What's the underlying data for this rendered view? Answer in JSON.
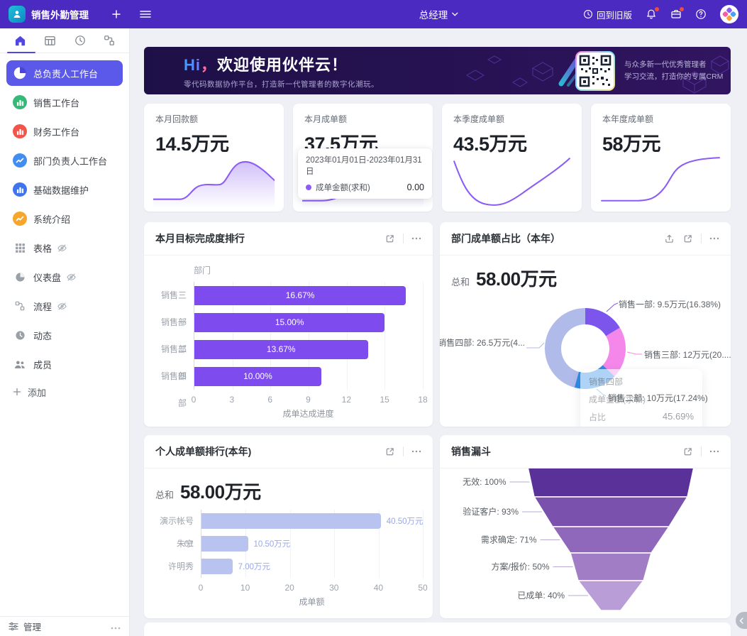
{
  "theme": {
    "topbar_bg": "#4b2ac1",
    "sidebar_active_bg": "#5b59ea",
    "accent_purple": "#7d4bee",
    "spark_color": "#8b5cf6",
    "light_bar": "#b8c3f0"
  },
  "topbar": {
    "app_title": "销售外勤管理",
    "role": "总经理",
    "back_to_old": "回到旧版"
  },
  "sidebar": {
    "tabs": [
      {
        "name": "home",
        "active": true
      },
      {
        "name": "table"
      },
      {
        "name": "clock"
      },
      {
        "name": "flow"
      }
    ],
    "items": [
      {
        "label": "总负责人工作台",
        "icon": "pie",
        "active": true
      },
      {
        "label": "销售工作台",
        "icon": "bars",
        "color": "#35ba76"
      },
      {
        "label": "财务工作台",
        "icon": "bars",
        "color": "#f2564a"
      },
      {
        "label": "部门负责人工作台",
        "icon": "trend",
        "color": "#418ef0"
      },
      {
        "label": "基础数据维护",
        "icon": "bars",
        "color": "#3f74ee"
      },
      {
        "label": "系统介绍",
        "icon": "trend",
        "color": "#f6a62a"
      },
      {
        "label": "表格",
        "icon": "grid",
        "eye": true
      },
      {
        "label": "仪表盘",
        "icon": "gauge",
        "eye": true
      },
      {
        "label": "流程",
        "icon": "flow",
        "eye": true
      },
      {
        "label": "动态",
        "icon": "activity"
      },
      {
        "label": "成员",
        "icon": "members"
      }
    ],
    "add_label": "添加",
    "footer": {
      "label": "管理"
    }
  },
  "banner": {
    "greeting": "Hi",
    "comma": "，",
    "title": "欢迎使用伙伴云！",
    "subtitle": "零代码数据协作平台，打造新一代管理者的数字化潮玩。",
    "qr_line1": "与众多新一代优秀管理者",
    "qr_line2": "学习交流，打造你的专属CRM"
  },
  "stat_cards": [
    {
      "label": "本月回款额",
      "value": "14.5万元",
      "spark_type": "area"
    },
    {
      "label": "本月成单额",
      "value": "37.5万元",
      "spark_type": "area",
      "tooltip": {
        "date_range": "2023年01月01日-2023年01月31日",
        "series": "成单金额(求和)",
        "value": "0.00"
      }
    },
    {
      "label": "本季度成单额",
      "value": "43.5万元",
      "spark_type": "line"
    },
    {
      "label": "本年度成单额",
      "value": "58万元",
      "spark_type": "line"
    }
  ],
  "chart_data": [
    {
      "id": "monthly-goal-ranking",
      "type": "bar",
      "title": "本月目标完成度排行",
      "ylabel": "部门",
      "categories": [
        "销售三部",
        "销售一部",
        "销售二部",
        "销售四部"
      ],
      "values": [
        16.67,
        15.0,
        13.67,
        10.0
      ],
      "value_labels": [
        "16.67%",
        "15.00%",
        "13.67%",
        "10.00%"
      ],
      "xlabel": "成单达成进度",
      "xlim": [
        0,
        18
      ],
      "xticks": [
        "0",
        "3",
        "6",
        "9",
        "12",
        "15",
        "18"
      ],
      "bar_color": "#7d4bee",
      "grid": true,
      "legend": false
    },
    {
      "id": "dept-deal-share",
      "type": "pie",
      "title": "部门成单额占比（本年）",
      "total_label": "总和",
      "total_value": "58.00万元",
      "slices": [
        {
          "name": "销售一部",
          "value_label": "销售一部: 9.5万元(16.38%)",
          "value": 16.38,
          "color": "#7b55ec"
        },
        {
          "name": "销售三部",
          "value_label": "销售三部: 12万元(20....",
          "value": 20.69,
          "color": "#f487e9"
        },
        {
          "name": "销售二部",
          "value_label": "销售二部: 10万元(17.24%)",
          "value": 17.24,
          "color": "#2f8be8"
        },
        {
          "name": "销售四部",
          "value_label": "销售四部: 26.5万元(4...",
          "value": 45.69,
          "color": "#b0bbe9"
        }
      ],
      "hover_tooltip": {
        "title": "销售四部",
        "row_label": "成单金额(求和)",
        "ratio_label": "占比",
        "ratio_value": "45.69%"
      }
    },
    {
      "id": "personal-deal-ranking",
      "type": "bar",
      "title": "个人成单额排行(本年)",
      "total_label": "总和",
      "total_value": "58.00万元",
      "categories": [
        "演示帐号01",
        "朱宁",
        "许明秀"
      ],
      "values": [
        40.5,
        10.5,
        7.0
      ],
      "value_labels": [
        "40.50万元",
        "10.50万元",
        "7.00万元"
      ],
      "xlabel": "成单额",
      "xlim": [
        0,
        50
      ],
      "xticks": [
        "0",
        "10",
        "20",
        "30",
        "40",
        "50"
      ],
      "bar_color": "#b8c3f0",
      "value_color": "#9aa7e9",
      "grid": true
    },
    {
      "id": "sales-funnel",
      "type": "funnel",
      "title": "销售漏斗",
      "stages": [
        {
          "label": "无效: 100%",
          "value": 100,
          "color": "#5a3099"
        },
        {
          "label": "验证客户: 93%",
          "value": 93,
          "color": "#7a52ae"
        },
        {
          "label": "需求确定: 71%",
          "value": 71,
          "color": "#8f68bb"
        },
        {
          "label": "方案/报价: 50%",
          "value": 50,
          "color": "#a17dc5"
        },
        {
          "label": "已成单: 40%",
          "value": 40,
          "color": "#b89dd6"
        }
      ]
    }
  ]
}
